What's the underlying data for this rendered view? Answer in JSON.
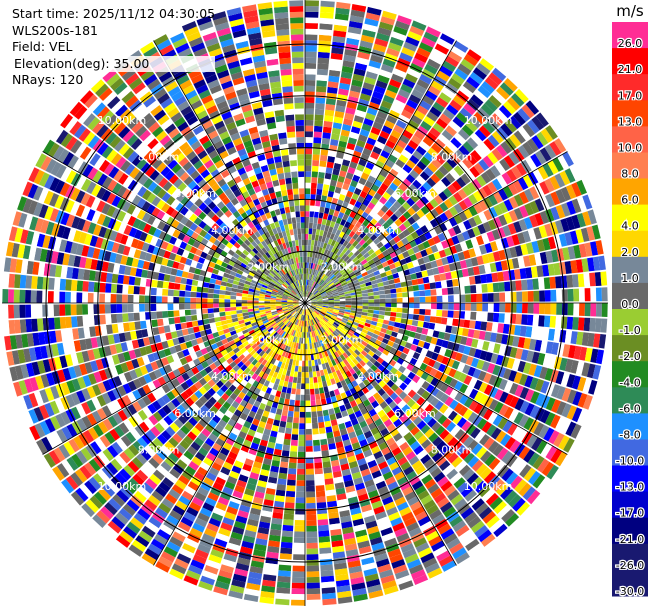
{
  "info": {
    "start_time": "Start time: 2025/11/12 04:30:05",
    "instrument": "WLS200s-181",
    "field": "Field: VEL",
    "elevation": "Elevation(deg): 35.00",
    "nrays": "NRays: 120"
  },
  "colorbar": {
    "unit": "m/s",
    "levels": [
      {
        "label": "26.0",
        "color": "#ff2d95"
      },
      {
        "label": "21.0",
        "color": "#ff0000"
      },
      {
        "label": "17.0",
        "color": "#ff2a2a"
      },
      {
        "label": "13.0",
        "color": "#ff4500"
      },
      {
        "label": "10.0",
        "color": "#ff6347"
      },
      {
        "label": "8.0",
        "color": "#ff7f50"
      },
      {
        "label": "6.0",
        "color": "#ffa500"
      },
      {
        "label": "4.0",
        "color": "#ffff00"
      },
      {
        "label": "2.0",
        "color": "#ffd700"
      },
      {
        "label": "1.0",
        "color": "#778899"
      },
      {
        "label": "0.0",
        "color": "#696969"
      },
      {
        "label": "-1.0",
        "color": "#9acd32"
      },
      {
        "label": "-2.0",
        "color": "#6b8e23"
      },
      {
        "label": "-4.0",
        "color": "#228b22"
      },
      {
        "label": "-6.0",
        "color": "#2e8b57"
      },
      {
        "label": "-8.0",
        "color": "#1e90ff"
      },
      {
        "label": "-10.0",
        "color": "#4169e1"
      },
      {
        "label": "-13.0",
        "color": "#0000ff"
      },
      {
        "label": "-17.0",
        "color": "#0000cd"
      },
      {
        "label": "-21.0",
        "color": "#000080"
      },
      {
        "label": "-26.0",
        "color": "#191970"
      },
      {
        "label": "-30.0",
        "color": "#191970"
      }
    ]
  },
  "range_ring_labels": [
    "2.00km",
    "4.00km",
    "6.00km",
    "8.00km",
    "10.00km"
  ],
  "chart_data": {
    "type": "heatmap",
    "projection": "polar",
    "field": "VEL",
    "nrays": 120,
    "elevation_deg": 35.0,
    "range_rings_km": [
      2,
      4,
      6,
      8,
      10
    ],
    "max_range_km": 11.7,
    "colorbar_range": [
      -30.0,
      26.0
    ],
    "center_pattern": "near range: positive (yellow) to the south-east, negative (green) to the north-west; outer ranges noisy"
  }
}
